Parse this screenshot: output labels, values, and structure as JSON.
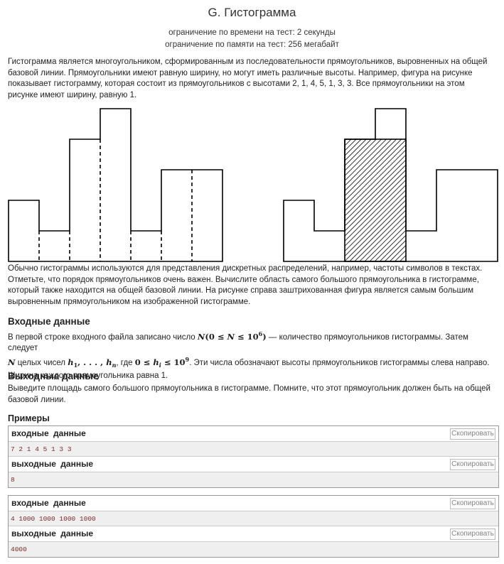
{
  "problem": {
    "title": "G. Гистограмма",
    "time_limit": "ограничение по времени на тест: 2 секунды",
    "memory_limit": "ограничение по памяти на тест: 256 мегабайт"
  },
  "statement": {
    "intro": "Гистограмма является многоугольником, сформированным из последовательности прямоугольников, выровненных на общей базовой линии. Прямоугольники имеют равную ширину, но могут иметь различные высоты. Например, фигура на рисунке показывает гистограмму, которая состоит из прямоугольников с высотами 2, 1, 4, 5, 1, 3, 3. Все прямоугольники на этом рисунке имеют ширину, равную 1.",
    "usage": "Обычно гистограммы используются для представления дискретных распределений, например, частоты символов в текстах. Отметьте, что порядок прямоугольников очень важен. Вычислите область самого большого прямоугольника в гистограмме, который также находится на общей базовой линии. На рисунке справа заштрихованная фигура является самым большим выровненным прямоугольником на изображенной гистограмме."
  },
  "figures": {
    "heights": [
      2,
      1,
      4,
      5,
      1,
      3,
      3
    ],
    "highlight_start": 2,
    "highlight_end": 3,
    "highlight_height": 4
  },
  "input_section": {
    "title": "Входные данные",
    "t1": "В первой строке входного файла записано число ",
    "N": "N",
    "range_open": "(0 ≤ ",
    "range_mid": " ≤ 10",
    "exp6": "6",
    "range_close": ")",
    "t2": " — количество прямоугольников гистограммы. Затем следует ",
    "t3": " целых чисел ",
    "h1": "h",
    "sub1": "1",
    "dots": ", . . . , ",
    "hn": "h",
    "subn": "n",
    "t4": ", где ",
    "hrange_open": "0 ≤ ",
    "hi": "h",
    "subi": "i",
    "hrange_mid": " ≤ 10",
    "exp9": "9",
    "t5": ". Эти числа обозначают высоты прямоугольников гистограммы слева направо. Ширина каждого прямоугольника равна 1."
  },
  "output_section": {
    "title": "Выходные данные",
    "text": "Выведите площадь самого большого прямоугольника в гистограмме. Помните, что этот прямоугольник должен быть на общей базовой линии."
  },
  "examples": {
    "title": "Примеры",
    "input_label": "входные данные",
    "output_label": "выходные данные",
    "copy_label": "Скопировать",
    "items": [
      {
        "input": "7 2 1 4 5 1 3 3",
        "output": "8"
      },
      {
        "input": "4 1000 1000 1000 1000",
        "output": "4000"
      }
    ]
  }
}
